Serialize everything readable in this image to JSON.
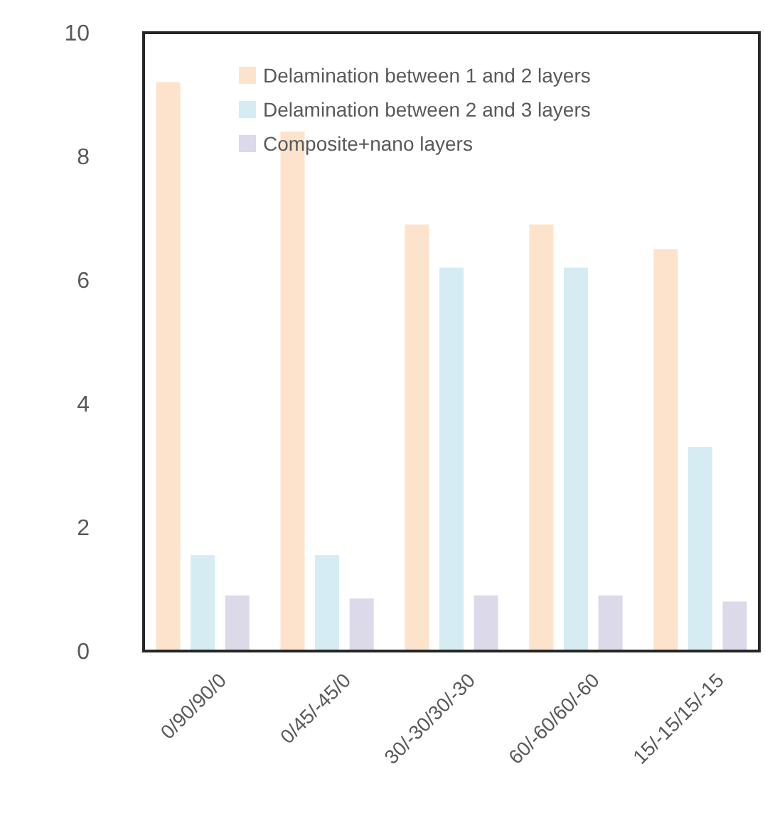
{
  "chart_data": {
    "type": "bar",
    "categories": [
      "0/90/90/0",
      "0/45/-45/0",
      "30/-30/30/-30",
      "60/-60/60/-60",
      "15/-15/15/-15"
    ],
    "series": [
      {
        "name": "Delamination between 1 and 2 layers",
        "color": "#fde3cc",
        "values": [
          9.2,
          8.4,
          6.9,
          6.9,
          6.5
        ]
      },
      {
        "name": "Delamination between 2 and 3 layers",
        "color": "#d5ecf3",
        "values": [
          1.55,
          1.55,
          6.2,
          6.2,
          3.3
        ]
      },
      {
        "name": "Composite+nano layers",
        "color": "#dcdae8",
        "values": [
          0.9,
          0.85,
          0.9,
          0.9,
          0.8
        ]
      }
    ],
    "ylim": [
      0,
      10
    ],
    "yticks": [
      0,
      2,
      4,
      6,
      8,
      10
    ],
    "grid": false,
    "legend": "top"
  }
}
